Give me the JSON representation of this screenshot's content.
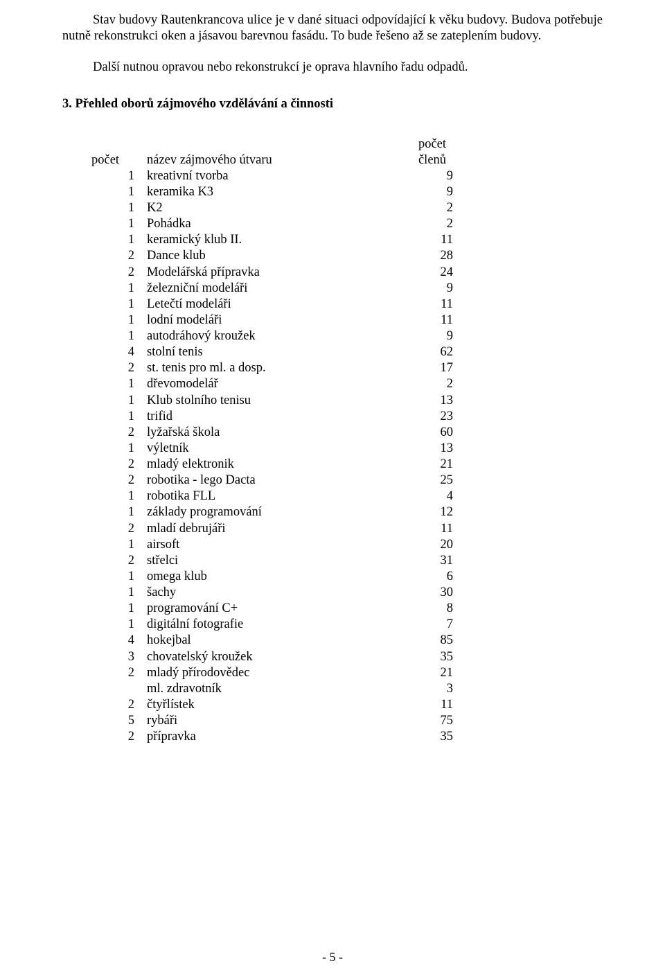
{
  "paragraphs": {
    "p1": "Stav budovy Rautenkrancova ulice je v dané situaci odpovídající k věku budovy. Budova potřebuje nutně rekonstrukci oken a jásavou barevnou fasádu. To bude řešeno až se zateplením budovy.",
    "p2": "Další nutnou opravou nebo rekonstrukcí je oprava hlavního řadu odpadů."
  },
  "heading": "3. Přehled oborů zájmového vzdělávání a činnosti",
  "table": {
    "header": {
      "count": "počet",
      "name": "název zájmového útvaru",
      "members_line1": "počet",
      "members_line2": "členů"
    },
    "rows": [
      {
        "count": "1",
        "name": "kreativní tvorba",
        "members": "9"
      },
      {
        "count": "1",
        "name": "keramika K3",
        "members": "9"
      },
      {
        "count": "1",
        "name": "K2",
        "members": "2"
      },
      {
        "count": "1",
        "name": "Pohádka",
        "members": "2"
      },
      {
        "count": "1",
        "name": "keramický klub II.",
        "members": "11"
      },
      {
        "count": "2",
        "name": "Dance klub",
        "members": "28"
      },
      {
        "count": "2",
        "name": "Modelářská přípravka",
        "members": "24"
      },
      {
        "count": "1",
        "name": "železniční modeláři",
        "members": "9"
      },
      {
        "count": "1",
        "name": "Letečtí modeláři",
        "members": "11"
      },
      {
        "count": "1",
        "name": "lodní modeláři",
        "members": "11"
      },
      {
        "count": "1",
        "name": "autodráhový kroužek",
        "members": "9"
      },
      {
        "count": "4",
        "name": "stolní tenis",
        "members": "62"
      },
      {
        "count": "2",
        "name": "st. tenis pro ml. a dosp.",
        "members": "17"
      },
      {
        "count": "1",
        "name": "dřevomodelář",
        "members": "2"
      },
      {
        "count": "1",
        "name": "Klub stolního tenisu",
        "members": "13"
      },
      {
        "count": "1",
        "name": "trifid",
        "members": "23"
      },
      {
        "count": "2",
        "name": "lyžařská škola",
        "members": "60"
      },
      {
        "count": "1",
        "name": "výletník",
        "members": "13"
      },
      {
        "count": "2",
        "name": "mladý elektronik",
        "members": "21"
      },
      {
        "count": "2",
        "name": "robotika - lego Dacta",
        "members": "25"
      },
      {
        "count": "1",
        "name": "robotika FLL",
        "members": "4"
      },
      {
        "count": "1",
        "name": "základy programování",
        "members": "12"
      },
      {
        "count": "2",
        "name": "mladí debrujáři",
        "members": "11"
      },
      {
        "count": "1",
        "name": "airsoft",
        "members": "20"
      },
      {
        "count": "2",
        "name": "střelci",
        "members": "31"
      },
      {
        "count": "1",
        "name": "omega klub",
        "members": "6"
      },
      {
        "count": "1",
        "name": "šachy",
        "members": "30"
      },
      {
        "count": "1",
        "name": "programování C+",
        "members": "8"
      },
      {
        "count": "1",
        "name": "digitální fotografie",
        "members": "7"
      },
      {
        "count": "4",
        "name": "hokejbal",
        "members": "85"
      },
      {
        "count": "3",
        "name": "chovatelský kroužek",
        "members": "35"
      },
      {
        "count": "2",
        "name": "mladý přírodovědec",
        "members": "21"
      },
      {
        "count": "",
        "name": "ml. zdravotník",
        "members": "3"
      },
      {
        "count": "2",
        "name": "čtyřlístek",
        "members": "11"
      },
      {
        "count": "5",
        "name": "rybáři",
        "members": "75"
      },
      {
        "count": "2",
        "name": "přípravka",
        "members": "35"
      }
    ]
  },
  "footer": "- 5 -"
}
